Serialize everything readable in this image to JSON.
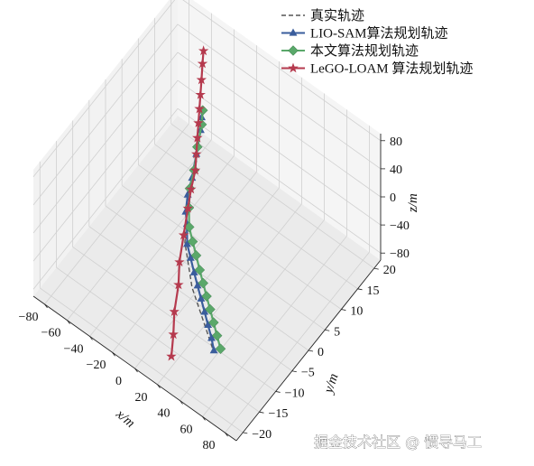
{
  "chart_data": {
    "type": "line-3d",
    "title": "",
    "xlabel": "x/m",
    "ylabel": "y/m",
    "zlabel": "z/m",
    "xlim": [
      -90,
      90
    ],
    "ylim": [
      -22,
      22
    ],
    "zlim": [
      -90,
      90
    ],
    "x_ticks": [
      "−80",
      "−60",
      "−40",
      "−20",
      "0",
      "20",
      "40",
      "60",
      "80"
    ],
    "y_ticks": [
      "−20",
      "−15",
      "−10",
      "−5",
      "0",
      "5",
      "10",
      "15",
      "20"
    ],
    "z_ticks": [
      "−80",
      "−40",
      "0",
      "40",
      "80"
    ],
    "grid": true,
    "legend_placement": "top-right",
    "series": [
      {
        "name": "真实轨迹",
        "color": "#555555",
        "style": "dashed",
        "marker": "none",
        "points": [
          [
            -28,
            8,
            60
          ],
          [
            -24,
            5,
            20
          ],
          [
            -22,
            3,
            0
          ],
          [
            -18,
            0,
            -10
          ],
          [
            -8,
            -4,
            -25
          ],
          [
            10,
            -8,
            -45
          ],
          [
            25,
            -10,
            -60
          ],
          [
            40,
            -12,
            -75
          ]
        ]
      },
      {
        "name": "LIO-SAM算法规划轨迹",
        "color": "#3a5d9c",
        "style": "solid",
        "marker": "triangle",
        "points": [
          [
            -28,
            8,
            60
          ],
          [
            -26,
            7,
            50
          ],
          [
            -24,
            5,
            30
          ],
          [
            -22,
            3,
            10
          ],
          [
            -20,
            1,
            0
          ],
          [
            -16,
            -1,
            -8
          ],
          [
            -12,
            -2,
            -15
          ],
          [
            -6,
            -4,
            -25
          ],
          [
            0,
            -5,
            -32
          ],
          [
            6,
            -6,
            -40
          ],
          [
            12,
            -7,
            -46
          ],
          [
            18,
            -8,
            -52
          ],
          [
            24,
            -9,
            -58
          ],
          [
            30,
            -10,
            -64
          ],
          [
            36,
            -11,
            -70
          ],
          [
            41,
            -12,
            -76
          ]
        ]
      },
      {
        "name": "本文算法规划轨迹",
        "color": "#5aa86a",
        "style": "solid",
        "marker": "diamond",
        "points": [
          [
            -30,
            9,
            62
          ],
          [
            -28,
            8,
            50
          ],
          [
            -26,
            6,
            32
          ],
          [
            -23,
            4,
            14
          ],
          [
            -21,
            2,
            2
          ],
          [
            -16,
            0,
            -8
          ],
          [
            -10,
            -2,
            -17
          ],
          [
            -4,
            -3,
            -25
          ],
          [
            2,
            -4,
            -32
          ],
          [
            8,
            -5,
            -40
          ],
          [
            14,
            -6,
            -46
          ],
          [
            20,
            -7,
            -52
          ],
          [
            26,
            -8,
            -58
          ],
          [
            32,
            -9,
            -64
          ],
          [
            38,
            -10,
            -70
          ],
          [
            44,
            -11,
            -76
          ]
        ]
      },
      {
        "name": "LeGO-LOAM 算法规划轨迹",
        "color": "#b53a4e",
        "style": "solid",
        "marker": "star",
        "points": [
          [
            -38,
            12,
            120
          ],
          [
            -36,
            11,
            110
          ],
          [
            -34,
            10,
            95
          ],
          [
            -32,
            9,
            82
          ],
          [
            -30,
            8,
            70
          ],
          [
            -28,
            7,
            58
          ],
          [
            -26,
            6,
            45
          ],
          [
            -24,
            5,
            30
          ],
          [
            -22,
            4,
            15
          ],
          [
            -20,
            2,
            2
          ],
          [
            -17,
            0,
            -10
          ],
          [
            -12,
            -3,
            -25
          ],
          [
            -7,
            -6,
            -40
          ],
          [
            -2,
            -8,
            -55
          ],
          [
            3,
            -11,
            -70
          ],
          [
            8,
            -13,
            -85
          ],
          [
            12,
            -15,
            -100
          ]
        ]
      }
    ]
  },
  "watermark": "掘金技术社区 @ 惯导马工"
}
